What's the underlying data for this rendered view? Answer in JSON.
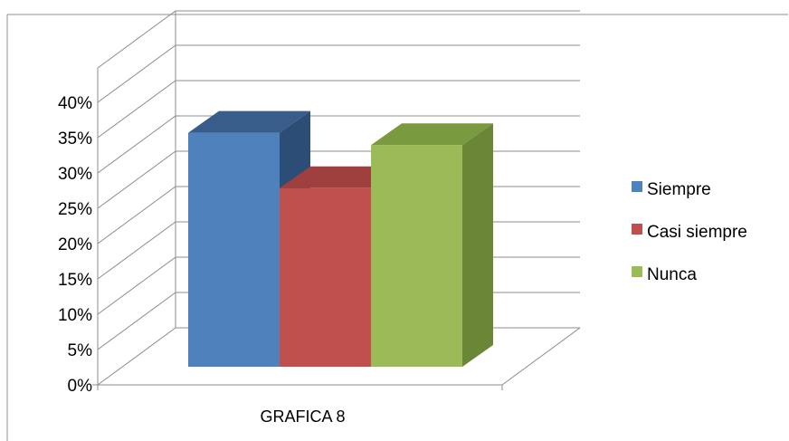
{
  "chart_data": {
    "type": "bar",
    "style": "3d-clustered-column",
    "categories": [
      "GRAFICA 8"
    ],
    "series": [
      {
        "name": "Siempre",
        "values": [
          0.38
        ],
        "color": "#4f81bd",
        "top_color": "#385d8a",
        "side_color": "#2c4d75"
      },
      {
        "name": "Casi siempre",
        "values": [
          0.29
        ],
        "color": "#c0504d",
        "top_color": "#a0403e",
        "side_color": "#8c3836"
      },
      {
        "name": "Nunca",
        "values": [
          0.36
        ],
        "color": "#9bbb59",
        "top_color": "#7a9a3f",
        "side_color": "#6a8637"
      }
    ],
    "y_ticks": [
      "0%",
      "5%",
      "10%",
      "15%",
      "20%",
      "25%",
      "30%",
      "35%",
      "40%"
    ],
    "ylim": [
      0,
      0.4
    ],
    "grid": true,
    "legend_position": "right",
    "title": "",
    "xlabel": "",
    "ylabel": ""
  }
}
